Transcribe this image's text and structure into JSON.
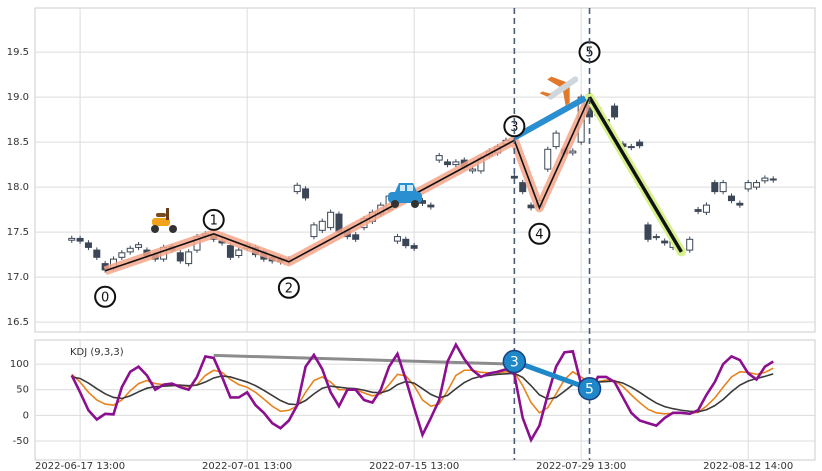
{
  "chart_data": [
    {
      "type": "candlestick",
      "ylim": [
        16.39,
        19.99
      ],
      "yticks": [
        16.5,
        {
          "value": 17,
          "label": "17.0"
        },
        17.5,
        {
          "value": 18,
          "label": "18.0"
        },
        18.5,
        {
          "value": 19,
          "label": "19.0"
        },
        19.5
      ],
      "grid": true,
      "up_color": "#ffffff",
      "down_color": "#3b4656",
      "edge_color": "#3b4656",
      "open": [
        17.41,
        17.43,
        17.38,
        17.3,
        17.15,
        17.1,
        17.22,
        17.28,
        17.33,
        17.3,
        17.25,
        17.2,
        17.34,
        17.27,
        17.15,
        17.3,
        17.46,
        17.46,
        17.4,
        17.35,
        17.24,
        17.32,
        17.33,
        17.28,
        17.22,
        17.2,
        17.17,
        17.95,
        17.98,
        17.45,
        17.52,
        17.55,
        17.7,
        17.52,
        17.47,
        17.55,
        17.62,
        17.7,
        17.75,
        17.4,
        17.42,
        17.35,
        17.85,
        17.8,
        18.3,
        18.28,
        18.25,
        18.3,
        18.18,
        18.18,
        18.35,
        18.38,
        18.48,
        18.12,
        18.05,
        17.8,
        17.78,
        18.2,
        18.45,
        18.42,
        18.38,
        18.5,
        18.95,
        18.8,
        18.75,
        18.9,
        18.48,
        18.45,
        18.5,
        17.58,
        17.45,
        17.4,
        17.33,
        17.28,
        17.3,
        17.75,
        17.72,
        18.05,
        17.95,
        17.9,
        17.82,
        17.98,
        18.0,
        18.07,
        18.08
      ],
      "high": [
        17.46,
        17.46,
        17.41,
        17.33,
        17.18,
        17.23,
        17.3,
        17.35,
        17.39,
        17.33,
        17.28,
        17.36,
        17.37,
        17.3,
        17.31,
        17.48,
        17.51,
        17.49,
        17.43,
        17.38,
        17.33,
        17.39,
        17.36,
        17.31,
        17.25,
        17.23,
        17.23,
        18.05,
        18.01,
        17.61,
        17.65,
        17.75,
        17.73,
        17.55,
        17.5,
        17.68,
        17.75,
        17.83,
        17.93,
        17.48,
        17.45,
        17.38,
        17.88,
        17.83,
        18.38,
        18.31,
        18.31,
        18.33,
        18.23,
        18.35,
        18.43,
        18.48,
        18.55,
        18.15,
        18.08,
        17.83,
        17.88,
        18.45,
        18.63,
        18.45,
        18.43,
        19.03,
        18.98,
        18.91,
        18.78,
        18.93,
        18.51,
        18.48,
        18.53,
        17.61,
        17.48,
        17.43,
        17.43,
        17.33,
        17.45,
        17.78,
        17.83,
        18.08,
        18.08,
        17.93,
        17.85,
        18.08,
        18.08,
        18.13,
        18.12
      ],
      "low": [
        17.38,
        17.37,
        17.3,
        17.19,
        17.05,
        17.07,
        17.19,
        17.25,
        17.3,
        17.21,
        17.17,
        17.17,
        17.27,
        17.15,
        17.12,
        17.27,
        17.43,
        17.39,
        17.35,
        17.19,
        17.21,
        17.29,
        17.22,
        17.17,
        17.15,
        17.14,
        17.14,
        17.92,
        17.85,
        17.42,
        17.49,
        17.52,
        17.47,
        17.42,
        17.39,
        17.52,
        17.59,
        17.67,
        17.72,
        17.37,
        17.32,
        17.29,
        17.79,
        17.75,
        18.27,
        18.22,
        18.22,
        18.19,
        18.15,
        18.15,
        18.32,
        18.35,
        18.45,
        18.07,
        17.92,
        17.74,
        17.75,
        18.17,
        18.42,
        18.34,
        18.35,
        18.47,
        18.75,
        18.77,
        18.69,
        18.75,
        18.42,
        18.41,
        18.43,
        17.39,
        17.41,
        17.35,
        17.3,
        17.25,
        17.27,
        17.7,
        17.69,
        17.92,
        17.92,
        17.82,
        17.77,
        17.95,
        17.97,
        18.04,
        18.05
      ],
      "close": [
        17.43,
        17.4,
        17.33,
        17.22,
        17.08,
        17.2,
        17.27,
        17.32,
        17.36,
        17.24,
        17.2,
        17.33,
        17.3,
        17.18,
        17.28,
        17.45,
        17.48,
        17.42,
        17.38,
        17.22,
        17.3,
        17.36,
        17.25,
        17.2,
        17.18,
        17.17,
        17.2,
        18.02,
        17.88,
        17.58,
        17.62,
        17.72,
        17.5,
        17.45,
        17.42,
        17.65,
        17.72,
        17.8,
        17.9,
        17.45,
        17.35,
        17.32,
        17.82,
        17.78,
        18.35,
        18.25,
        18.28,
        18.22,
        18.2,
        18.32,
        18.4,
        18.45,
        18.52,
        18.1,
        17.95,
        17.77,
        17.85,
        18.42,
        18.6,
        18.37,
        18.4,
        19.0,
        18.78,
        18.88,
        18.72,
        18.78,
        18.45,
        18.44,
        18.46,
        17.42,
        17.44,
        17.38,
        17.4,
        17.3,
        17.42,
        17.73,
        17.8,
        17.95,
        18.05,
        17.85,
        17.8,
        18.05,
        18.05,
        18.1,
        18.09
      ],
      "waves": {
        "labels": [
          "0",
          "1",
          "2",
          "3",
          "4",
          "5",
          null
        ],
        "x": [
          4,
          17,
          26,
          53,
          56,
          62,
          73
        ],
        "y": [
          17.07,
          17.48,
          17.17,
          18.52,
          17.77,
          19.0,
          17.28
        ],
        "color": "#111111",
        "halo_color": "#f4a58a",
        "last_halo_color": "#d6f28c"
      },
      "projection": {
        "x": [
          53,
          61.5
        ],
        "y": [
          18.55,
          18.99
        ],
        "color": "#2a8fd0"
      },
      "vlines": [
        53,
        62
      ]
    },
    {
      "type": "line",
      "title": "KDJ (9,3,3)",
      "xlim": [
        -4.4,
        89
      ],
      "xticks": [
        {
          "value": 1,
          "label": "2022-06-17 13:00"
        },
        {
          "value": 21,
          "label": "2022-07-01 13:00"
        },
        {
          "value": 41,
          "label": "2022-07-15 13:00"
        },
        {
          "value": 61,
          "label": "2022-07-29 13:00"
        },
        {
          "value": 81,
          "label": "2022-08-12 14:00"
        }
      ],
      "ylim": [
        -87,
        147
      ],
      "yticks": [
        -50,
        0,
        50,
        100
      ],
      "grid": true,
      "series": [
        {
          "color": "#e8821e",
          "values": [
            80,
            65,
            45,
            30,
            22,
            20,
            30,
            48,
            62,
            68,
            62,
            60,
            61,
            59,
            56,
            60,
            78,
            88,
            84,
            70,
            60,
            55,
            45,
            32,
            18,
            8,
            10,
            18,
            45,
            68,
            75,
            65,
            50,
            50,
            50,
            44,
            38,
            42,
            60,
            80,
            77,
            58,
            30,
            18,
            22,
            48,
            78,
            88,
            88,
            84,
            83,
            83,
            85,
            84,
            58,
            25,
            5,
            15,
            42,
            70,
            85,
            75,
            63,
            66,
            69,
            68,
            56,
            40,
            25,
            12,
            5,
            3,
            4,
            4,
            4,
            6,
            18,
            34,
            55,
            75,
            85,
            84,
            80,
            84,
            92
          ]
        },
        {
          "color": "#3a3a3a",
          "values": [
            75,
            72,
            63,
            52,
            42,
            35,
            33,
            38,
            46,
            53,
            56,
            57,
            58,
            59,
            58,
            59,
            65,
            73,
            77,
            75,
            70,
            65,
            58,
            49,
            39,
            29,
            22,
            21,
            29,
            42,
            53,
            57,
            55,
            53,
            52,
            49,
            45,
            44,
            49,
            60,
            66,
            63,
            52,
            41,
            34,
            39,
            52,
            64,
            72,
            76,
            78,
            80,
            81,
            82,
            74,
            58,
            40,
            32,
            35,
            47,
            60,
            65,
            64,
            65,
            66,
            67,
            63,
            55,
            45,
            34,
            24,
            17,
            13,
            10,
            8,
            7,
            11,
            19,
            31,
            46,
            59,
            67,
            72,
            76,
            81
          ]
        },
        {
          "color": "#8b0f8f",
          "values": [
            78,
            45,
            10,
            -8,
            3,
            2,
            55,
            85,
            95,
            78,
            50,
            60,
            62,
            55,
            50,
            75,
            115,
            112,
            75,
            35,
            35,
            45,
            20,
            5,
            -15,
            -25,
            -10,
            20,
            95,
            118,
            90,
            45,
            18,
            50,
            50,
            30,
            25,
            50,
            95,
            120,
            70,
            15,
            -38,
            -5,
            30,
            105,
            138,
            110,
            88,
            75,
            82,
            85,
            90,
            80,
            -5,
            -48,
            -20,
            40,
            95,
            123,
            125,
            60,
            40,
            75,
            75,
            65,
            35,
            5,
            -10,
            -15,
            -20,
            -5,
            5,
            5,
            3,
            10,
            40,
            65,
            100,
            115,
            108,
            82,
            70,
            95,
            105
          ]
        }
      ],
      "trend": {
        "x": [
          17,
          53
        ],
        "y": [
          117,
          100
        ],
        "color": "#8c8c8c"
      },
      "markers": {
        "labels": [
          "3",
          "5"
        ],
        "x": [
          53,
          62
        ],
        "y": [
          105,
          52
        ],
        "color": "#1f88c9"
      }
    }
  ]
}
